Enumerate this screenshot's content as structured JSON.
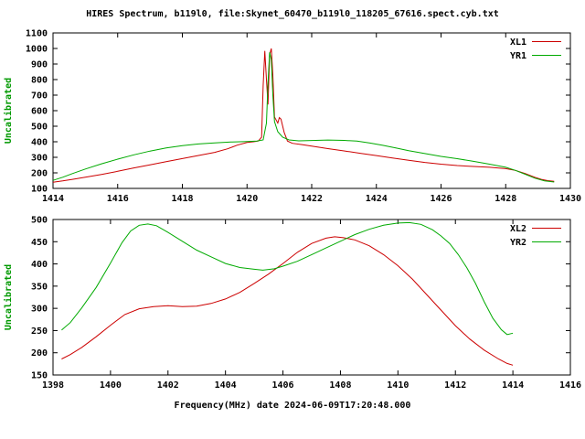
{
  "title": "HIRES Spectrum, b119l0, file:Skynet_60470_b119l0_118205_67616.spect.cyb.txt",
  "xlabel": "Frequency(MHz) date 2024-06-09T17:20:48.000",
  "colors": {
    "red": "#cc0000",
    "green": "#00aa00",
    "axis": "#000000",
    "ylabel": "#009900"
  },
  "chart_data": [
    {
      "type": "line",
      "ylabel": "Uncalibrated",
      "xlim": [
        1414,
        1430
      ],
      "ylim": [
        100,
        1100
      ],
      "xtick_step": 2,
      "ytick_step": 100,
      "grid": false,
      "legend_position": "top-right",
      "series": [
        {
          "name": "XL1",
          "color": "#cc0000",
          "points": [
            [
              1414.0,
              140
            ],
            [
              1414.3,
              148
            ],
            [
              1414.6,
              158
            ],
            [
              1415.0,
              172
            ],
            [
              1415.5,
              190
            ],
            [
              1416.0,
              210
            ],
            [
              1416.5,
              232
            ],
            [
              1417.0,
              252
            ],
            [
              1417.5,
              272
            ],
            [
              1418.0,
              292
            ],
            [
              1418.5,
              312
            ],
            [
              1419.0,
              332
            ],
            [
              1419.4,
              355
            ],
            [
              1419.7,
              378
            ],
            [
              1420.0,
              395
            ],
            [
              1420.2,
              400
            ],
            [
              1420.35,
              405
            ],
            [
              1420.45,
              430
            ],
            [
              1420.5,
              760
            ],
            [
              1420.55,
              985
            ],
            [
              1420.6,
              800
            ],
            [
              1420.65,
              640
            ],
            [
              1420.7,
              960
            ],
            [
              1420.75,
              1000
            ],
            [
              1420.8,
              830
            ],
            [
              1420.85,
              560
            ],
            [
              1420.95,
              520
            ],
            [
              1421.0,
              555
            ],
            [
              1421.05,
              545
            ],
            [
              1421.15,
              460
            ],
            [
              1421.25,
              405
            ],
            [
              1421.4,
              390
            ],
            [
              1421.7,
              382
            ],
            [
              1422.0,
              372
            ],
            [
              1422.5,
              356
            ],
            [
              1423.0,
              341
            ],
            [
              1423.5,
              326
            ],
            [
              1424.0,
              311
            ],
            [
              1424.5,
              296
            ],
            [
              1425.0,
              281
            ],
            [
              1425.5,
              267
            ],
            [
              1426.0,
              256
            ],
            [
              1426.5,
              247
            ],
            [
              1427.0,
              241
            ],
            [
              1427.5,
              236
            ],
            [
              1428.0,
              227
            ],
            [
              1428.3,
              216
            ],
            [
              1428.6,
              196
            ],
            [
              1428.9,
              172
            ],
            [
              1429.1,
              158
            ],
            [
              1429.3,
              150
            ],
            [
              1429.5,
              146
            ]
          ]
        },
        {
          "name": "YR1",
          "color": "#00aa00",
          "points": [
            [
              1414.0,
              152
            ],
            [
              1414.3,
              172
            ],
            [
              1414.6,
              195
            ],
            [
              1415.0,
              225
            ],
            [
              1415.5,
              258
            ],
            [
              1416.0,
              288
            ],
            [
              1416.5,
              316
            ],
            [
              1417.0,
              340
            ],
            [
              1417.5,
              360
            ],
            [
              1418.0,
              375
            ],
            [
              1418.5,
              386
            ],
            [
              1419.0,
              393
            ],
            [
              1419.5,
              398
            ],
            [
              1420.0,
              401
            ],
            [
              1420.3,
              404
            ],
            [
              1420.5,
              412
            ],
            [
              1420.6,
              520
            ],
            [
              1420.65,
              780
            ],
            [
              1420.7,
              975
            ],
            [
              1420.75,
              930
            ],
            [
              1420.8,
              700
            ],
            [
              1420.85,
              530
            ],
            [
              1420.95,
              465
            ],
            [
              1421.1,
              430
            ],
            [
              1421.3,
              412
            ],
            [
              1421.6,
              406
            ],
            [
              1422.0,
              408
            ],
            [
              1422.5,
              411
            ],
            [
              1423.0,
              409
            ],
            [
              1423.4,
              404
            ],
            [
              1423.8,
              392
            ],
            [
              1424.2,
              377
            ],
            [
              1424.6,
              360
            ],
            [
              1425.0,
              343
            ],
            [
              1425.5,
              324
            ],
            [
              1426.0,
              306
            ],
            [
              1426.5,
              291
            ],
            [
              1427.0,
              274
            ],
            [
              1427.5,
              256
            ],
            [
              1428.0,
              236
            ],
            [
              1428.3,
              216
            ],
            [
              1428.6,
              191
            ],
            [
              1428.9,
              166
            ],
            [
              1429.2,
              149
            ],
            [
              1429.5,
              141
            ]
          ]
        }
      ]
    },
    {
      "type": "line",
      "ylabel": "Uncalibrated",
      "xlim": [
        1398,
        1416
      ],
      "ylim": [
        150,
        500
      ],
      "xtick_step": 2,
      "ytick_step": 50,
      "grid": false,
      "legend_position": "top-right",
      "series": [
        {
          "name": "XL2",
          "color": "#cc0000",
          "points": [
            [
              1398.3,
              186
            ],
            [
              1398.6,
              196
            ],
            [
              1399.0,
              212
            ],
            [
              1399.5,
              236
            ],
            [
              1400.0,
              262
            ],
            [
              1400.5,
              286
            ],
            [
              1401.0,
              299
            ],
            [
              1401.5,
              304
            ],
            [
              1402.0,
              306
            ],
            [
              1402.5,
              304
            ],
            [
              1403.0,
              305
            ],
            [
              1403.5,
              311
            ],
            [
              1404.0,
              321
            ],
            [
              1404.5,
              336
            ],
            [
              1405.0,
              356
            ],
            [
              1405.5,
              377
            ],
            [
              1406.0,
              401
            ],
            [
              1406.5,
              426
            ],
            [
              1407.0,
              446
            ],
            [
              1407.5,
              458
            ],
            [
              1407.8,
              461
            ],
            [
              1408.1,
              459
            ],
            [
              1408.5,
              454
            ],
            [
              1409.0,
              441
            ],
            [
              1409.5,
              421
            ],
            [
              1410.0,
              396
            ],
            [
              1410.5,
              366
            ],
            [
              1411.0,
              331
            ],
            [
              1411.5,
              296
            ],
            [
              1412.0,
              261
            ],
            [
              1412.5,
              231
            ],
            [
              1413.0,
              206
            ],
            [
              1413.5,
              186
            ],
            [
              1413.8,
              176
            ],
            [
              1414.0,
              172
            ]
          ]
        },
        {
          "name": "YR2",
          "color": "#00aa00",
          "points": [
            [
              1398.3,
              251
            ],
            [
              1398.6,
              268
            ],
            [
              1399.0,
              301
            ],
            [
              1399.5,
              347
            ],
            [
              1400.0,
              402
            ],
            [
              1400.4,
              448
            ],
            [
              1400.7,
              474
            ],
            [
              1401.0,
              487
            ],
            [
              1401.3,
              490
            ],
            [
              1401.6,
              486
            ],
            [
              1402.0,
              471
            ],
            [
              1402.5,
              451
            ],
            [
              1403.0,
              431
            ],
            [
              1403.5,
              416
            ],
            [
              1404.0,
              401
            ],
            [
              1404.5,
              392
            ],
            [
              1405.0,
              388
            ],
            [
              1405.3,
              386
            ],
            [
              1405.7,
              389
            ],
            [
              1406.0,
              395
            ],
            [
              1406.5,
              406
            ],
            [
              1407.0,
              421
            ],
            [
              1407.5,
              436
            ],
            [
              1408.0,
              451
            ],
            [
              1408.5,
              466
            ],
            [
              1409.0,
              478
            ],
            [
              1409.5,
              487
            ],
            [
              1410.0,
              492
            ],
            [
              1410.4,
              493
            ],
            [
              1410.8,
              489
            ],
            [
              1411.2,
              477
            ],
            [
              1411.5,
              463
            ],
            [
              1411.8,
              446
            ],
            [
              1412.1,
              421
            ],
            [
              1412.4,
              391
            ],
            [
              1412.7,
              356
            ],
            [
              1413.0,
              315
            ],
            [
              1413.3,
              278
            ],
            [
              1413.6,
              252
            ],
            [
              1413.8,
              241
            ],
            [
              1414.0,
              244
            ]
          ]
        }
      ]
    }
  ]
}
